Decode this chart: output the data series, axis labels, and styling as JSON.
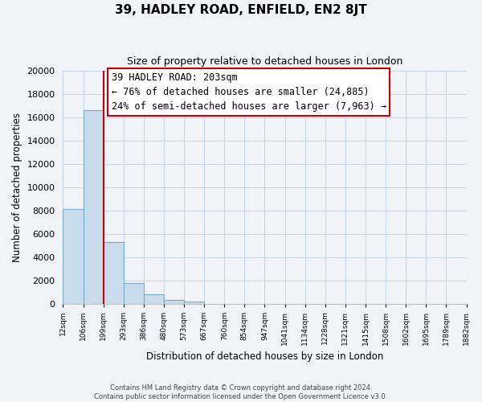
{
  "title": "39, HADLEY ROAD, ENFIELD, EN2 8JT",
  "subtitle": "Size of property relative to detached houses in London",
  "xlabel": "Distribution of detached houses by size in London",
  "ylabel": "Number of detached properties",
  "bar_heights": [
    8100,
    16600,
    5300,
    1750,
    800,
    300,
    200,
    0,
    0,
    0,
    0,
    0,
    0,
    0,
    0,
    0,
    0,
    0,
    0,
    0
  ],
  "bar_labels": [
    "12sqm",
    "106sqm",
    "199sqm",
    "293sqm",
    "386sqm",
    "480sqm",
    "573sqm",
    "667sqm",
    "760sqm",
    "854sqm",
    "947sqm",
    "1041sqm",
    "1134sqm",
    "1228sqm",
    "1321sqm",
    "1415sqm",
    "1508sqm",
    "1602sqm",
    "1695sqm",
    "1789sqm",
    "1882sqm"
  ],
  "bar_color": "#c8dcec",
  "bar_edge_color": "#7aaac8",
  "vline_x_index": 2,
  "vline_color": "#cc0000",
  "annotation_title": "39 HADLEY ROAD: 203sqm",
  "annotation_line1": "← 76% of detached houses are smaller (24,885)",
  "annotation_line2": "24% of semi-detached houses are larger (7,963) →",
  "annotation_box_color": "#ffffff",
  "annotation_box_edge": "#cc0000",
  "ylim": [
    0,
    20000
  ],
  "yticks": [
    0,
    2000,
    4000,
    6000,
    8000,
    10000,
    12000,
    14000,
    16000,
    18000,
    20000
  ],
  "footer_line1": "Contains HM Land Registry data © Crown copyright and database right 2024.",
  "footer_line2": "Contains public sector information licensed under the Open Government Licence v3.0.",
  "bg_color": "#f0f4f8",
  "grid_color": "#c8d4e4"
}
